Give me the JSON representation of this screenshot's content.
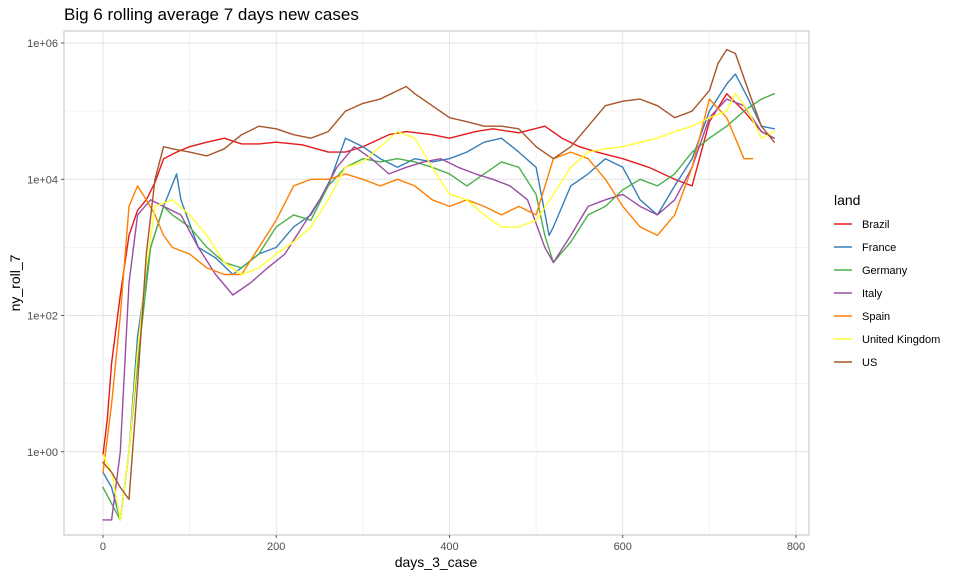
{
  "chart_data": {
    "type": "line",
    "title": "Big 6 rolling average 7 days new cases",
    "xlabel": "days_3_case",
    "ylabel": "ny_roll_7",
    "xlim": [
      -45,
      815
    ],
    "ylim": [
      0.06,
      1500000
    ],
    "y_scale": "log10",
    "x_ticks": [
      0,
      200,
      400,
      600,
      800
    ],
    "x_tick_labels": [
      "0",
      "200",
      "400",
      "600",
      "800"
    ],
    "y_ticks": [
      1,
      100,
      10000,
      1000000
    ],
    "y_tick_labels": [
      "1e+00",
      "1e+02",
      "1e+04",
      "1e+06"
    ],
    "grid": true,
    "legend_title": "land",
    "legend_position": "right",
    "series": [
      {
        "name": "Brazil",
        "color": "#E41A1C",
        "points": [
          [
            0,
            0.9
          ],
          [
            5,
            3
          ],
          [
            10,
            20
          ],
          [
            20,
            200
          ],
          [
            30,
            1500
          ],
          [
            40,
            3500
          ],
          [
            50,
            5000
          ],
          [
            60,
            9000
          ],
          [
            70,
            20000
          ],
          [
            85,
            25000
          ],
          [
            100,
            30000
          ],
          [
            120,
            35000
          ],
          [
            140,
            40000
          ],
          [
            160,
            33000
          ],
          [
            180,
            33000
          ],
          [
            200,
            35000
          ],
          [
            230,
            32000
          ],
          [
            260,
            25000
          ],
          [
            280,
            25000
          ],
          [
            300,
            30000
          ],
          [
            330,
            45000
          ],
          [
            350,
            50000
          ],
          [
            380,
            45000
          ],
          [
            400,
            40000
          ],
          [
            430,
            50000
          ],
          [
            450,
            55000
          ],
          [
            480,
            48000
          ],
          [
            510,
            60000
          ],
          [
            530,
            40000
          ],
          [
            550,
            30000
          ],
          [
            570,
            25000
          ],
          [
            600,
            20000
          ],
          [
            630,
            15000
          ],
          [
            660,
            10000
          ],
          [
            680,
            8000
          ],
          [
            700,
            70000
          ],
          [
            720,
            180000
          ],
          [
            740,
            100000
          ],
          [
            760,
            50000
          ],
          [
            775,
            40000
          ]
        ]
      },
      {
        "name": "France",
        "color": "#377EB8",
        "points": [
          [
            0,
            0.5
          ],
          [
            10,
            0.3
          ],
          [
            20,
            0.1
          ],
          [
            30,
            1
          ],
          [
            40,
            50
          ],
          [
            55,
            1000
          ],
          [
            70,
            4000
          ],
          [
            85,
            12000
          ],
          [
            90,
            5000
          ],
          [
            110,
            1000
          ],
          [
            130,
            700
          ],
          [
            150,
            400
          ],
          [
            180,
            800
          ],
          [
            200,
            1000
          ],
          [
            220,
            2000
          ],
          [
            240,
            3000
          ],
          [
            260,
            8000
          ],
          [
            280,
            40000
          ],
          [
            300,
            30000
          ],
          [
            320,
            20000
          ],
          [
            340,
            15000
          ],
          [
            360,
            20000
          ],
          [
            380,
            18000
          ],
          [
            400,
            20000
          ],
          [
            420,
            25000
          ],
          [
            440,
            35000
          ],
          [
            460,
            40000
          ],
          [
            480,
            25000
          ],
          [
            500,
            15000
          ],
          [
            515,
            1500
          ],
          [
            520,
            2000
          ],
          [
            540,
            8000
          ],
          [
            560,
            12000
          ],
          [
            580,
            20000
          ],
          [
            600,
            15000
          ],
          [
            620,
            5000
          ],
          [
            640,
            3000
          ],
          [
            660,
            8000
          ],
          [
            680,
            20000
          ],
          [
            700,
            100000
          ],
          [
            720,
            250000
          ],
          [
            730,
            350000
          ],
          [
            745,
            150000
          ],
          [
            760,
            60000
          ],
          [
            775,
            55000
          ]
        ]
      },
      {
        "name": "Germany",
        "color": "#4DAF4A",
        "points": [
          [
            0,
            0.3
          ],
          [
            20,
            0.1
          ],
          [
            30,
            1
          ],
          [
            40,
            20
          ],
          [
            55,
            1000
          ],
          [
            70,
            4000
          ],
          [
            80,
            3000
          ],
          [
            100,
            2000
          ],
          [
            120,
            1000
          ],
          [
            140,
            600
          ],
          [
            160,
            500
          ],
          [
            180,
            800
          ],
          [
            200,
            2000
          ],
          [
            220,
            3000
          ],
          [
            240,
            2500
          ],
          [
            260,
            8000
          ],
          [
            280,
            15000
          ],
          [
            300,
            20000
          ],
          [
            320,
            18000
          ],
          [
            340,
            20000
          ],
          [
            360,
            18000
          ],
          [
            380,
            15000
          ],
          [
            400,
            12000
          ],
          [
            420,
            8000
          ],
          [
            440,
            12000
          ],
          [
            460,
            18000
          ],
          [
            480,
            15000
          ],
          [
            500,
            6000
          ],
          [
            510,
            1500
          ],
          [
            520,
            600
          ],
          [
            540,
            1200
          ],
          [
            560,
            3000
          ],
          [
            580,
            4000
          ],
          [
            600,
            7000
          ],
          [
            620,
            10000
          ],
          [
            640,
            8000
          ],
          [
            660,
            12000
          ],
          [
            680,
            25000
          ],
          [
            700,
            40000
          ],
          [
            720,
            60000
          ],
          [
            740,
            100000
          ],
          [
            760,
            150000
          ],
          [
            775,
            180000
          ]
        ]
      },
      {
        "name": "Italy",
        "color": "#984EA3",
        "points": [
          [
            0,
            0.1
          ],
          [
            10,
            0.1
          ],
          [
            20,
            1
          ],
          [
            30,
            300
          ],
          [
            40,
            3000
          ],
          [
            55,
            5000
          ],
          [
            70,
            4000
          ],
          [
            90,
            3000
          ],
          [
            110,
            1000
          ],
          [
            130,
            400
          ],
          [
            150,
            200
          ],
          [
            170,
            300
          ],
          [
            190,
            500
          ],
          [
            210,
            800
          ],
          [
            230,
            2000
          ],
          [
            250,
            5000
          ],
          [
            270,
            15000
          ],
          [
            290,
            30000
          ],
          [
            310,
            20000
          ],
          [
            330,
            12000
          ],
          [
            350,
            15000
          ],
          [
            370,
            18000
          ],
          [
            390,
            20000
          ],
          [
            410,
            15000
          ],
          [
            430,
            12000
          ],
          [
            450,
            10000
          ],
          [
            470,
            8000
          ],
          [
            490,
            5000
          ],
          [
            510,
            1000
          ],
          [
            520,
            600
          ],
          [
            540,
            1500
          ],
          [
            560,
            4000
          ],
          [
            580,
            5000
          ],
          [
            600,
            6000
          ],
          [
            620,
            4000
          ],
          [
            640,
            3000
          ],
          [
            660,
            5000
          ],
          [
            680,
            15000
          ],
          [
            700,
            80000
          ],
          [
            720,
            150000
          ],
          [
            740,
            120000
          ],
          [
            760,
            50000
          ],
          [
            775,
            40000
          ]
        ]
      },
      {
        "name": "Spain",
        "color": "#FF7F00",
        "points": [
          [
            0,
            0.5
          ],
          [
            10,
            5
          ],
          [
            20,
            100
          ],
          [
            30,
            4000
          ],
          [
            40,
            8000
          ],
          [
            50,
            5000
          ],
          [
            60,
            3000
          ],
          [
            70,
            1500
          ],
          [
            80,
            1000
          ],
          [
            100,
            800
          ],
          [
            120,
            500
          ],
          [
            140,
            400
          ],
          [
            160,
            400
          ],
          [
            180,
            1000
          ],
          [
            200,
            2500
          ],
          [
            220,
            8000
          ],
          [
            240,
            10000
          ],
          [
            260,
            10000
          ],
          [
            280,
            12000
          ],
          [
            300,
            10000
          ],
          [
            320,
            8000
          ],
          [
            340,
            10000
          ],
          [
            360,
            8000
          ],
          [
            380,
            5000
          ],
          [
            400,
            4000
          ],
          [
            420,
            5000
          ],
          [
            440,
            4000
          ],
          [
            460,
            3000
          ],
          [
            480,
            4000
          ],
          [
            500,
            3000
          ],
          [
            520,
            20000
          ],
          [
            540,
            25000
          ],
          [
            560,
            20000
          ],
          [
            580,
            10000
          ],
          [
            600,
            4000
          ],
          [
            620,
            2000
          ],
          [
            640,
            1500
          ],
          [
            660,
            3000
          ],
          [
            680,
            15000
          ],
          [
            700,
            150000
          ],
          [
            720,
            80000
          ],
          [
            740,
            20000
          ],
          [
            750,
            20000
          ]
        ]
      },
      {
        "name": "United Kingdom",
        "color": "#FFFF33",
        "points": [
          [
            0,
            0.9
          ],
          [
            10,
            0.5
          ],
          [
            20,
            0.1
          ],
          [
            30,
            1
          ],
          [
            40,
            30
          ],
          [
            50,
            500
          ],
          [
            60,
            4000
          ],
          [
            80,
            5000
          ],
          [
            100,
            3000
          ],
          [
            120,
            1500
          ],
          [
            140,
            600
          ],
          [
            160,
            400
          ],
          [
            180,
            500
          ],
          [
            200,
            800
          ],
          [
            220,
            1200
          ],
          [
            240,
            2000
          ],
          [
            260,
            5000
          ],
          [
            280,
            15000
          ],
          [
            300,
            18000
          ],
          [
            320,
            30000
          ],
          [
            340,
            50000
          ],
          [
            360,
            40000
          ],
          [
            380,
            15000
          ],
          [
            400,
            6000
          ],
          [
            420,
            5000
          ],
          [
            440,
            3000
          ],
          [
            460,
            2000
          ],
          [
            480,
            2000
          ],
          [
            500,
            2500
          ],
          [
            520,
            6000
          ],
          [
            540,
            15000
          ],
          [
            560,
            25000
          ],
          [
            580,
            28000
          ],
          [
            600,
            30000
          ],
          [
            620,
            35000
          ],
          [
            640,
            40000
          ],
          [
            660,
            50000
          ],
          [
            680,
            60000
          ],
          [
            700,
            80000
          ],
          [
            720,
            100000
          ],
          [
            730,
            180000
          ],
          [
            745,
            100000
          ],
          [
            760,
            40000
          ],
          [
            775,
            50000
          ]
        ]
      },
      {
        "name": "US",
        "color": "#A65628",
        "points": [
          [
            0,
            0.7
          ],
          [
            10,
            0.5
          ],
          [
            20,
            0.3
          ],
          [
            30,
            0.2
          ],
          [
            40,
            10
          ],
          [
            50,
            800
          ],
          [
            60,
            10000
          ],
          [
            70,
            30000
          ],
          [
            80,
            28000
          ],
          [
            100,
            25000
          ],
          [
            120,
            22000
          ],
          [
            140,
            28000
          ],
          [
            160,
            45000
          ],
          [
            180,
            60000
          ],
          [
            200,
            55000
          ],
          [
            220,
            45000
          ],
          [
            240,
            40000
          ],
          [
            260,
            50000
          ],
          [
            280,
            100000
          ],
          [
            300,
            130000
          ],
          [
            320,
            150000
          ],
          [
            340,
            200000
          ],
          [
            350,
            230000
          ],
          [
            360,
            180000
          ],
          [
            380,
            120000
          ],
          [
            400,
            80000
          ],
          [
            420,
            70000
          ],
          [
            440,
            60000
          ],
          [
            460,
            60000
          ],
          [
            480,
            55000
          ],
          [
            500,
            30000
          ],
          [
            520,
            20000
          ],
          [
            540,
            30000
          ],
          [
            560,
            60000
          ],
          [
            580,
            120000
          ],
          [
            600,
            140000
          ],
          [
            620,
            150000
          ],
          [
            640,
            120000
          ],
          [
            660,
            80000
          ],
          [
            680,
            100000
          ],
          [
            700,
            200000
          ],
          [
            710,
            500000
          ],
          [
            720,
            800000
          ],
          [
            730,
            700000
          ],
          [
            745,
            200000
          ],
          [
            760,
            60000
          ],
          [
            775,
            35000
          ]
        ]
      }
    ]
  }
}
